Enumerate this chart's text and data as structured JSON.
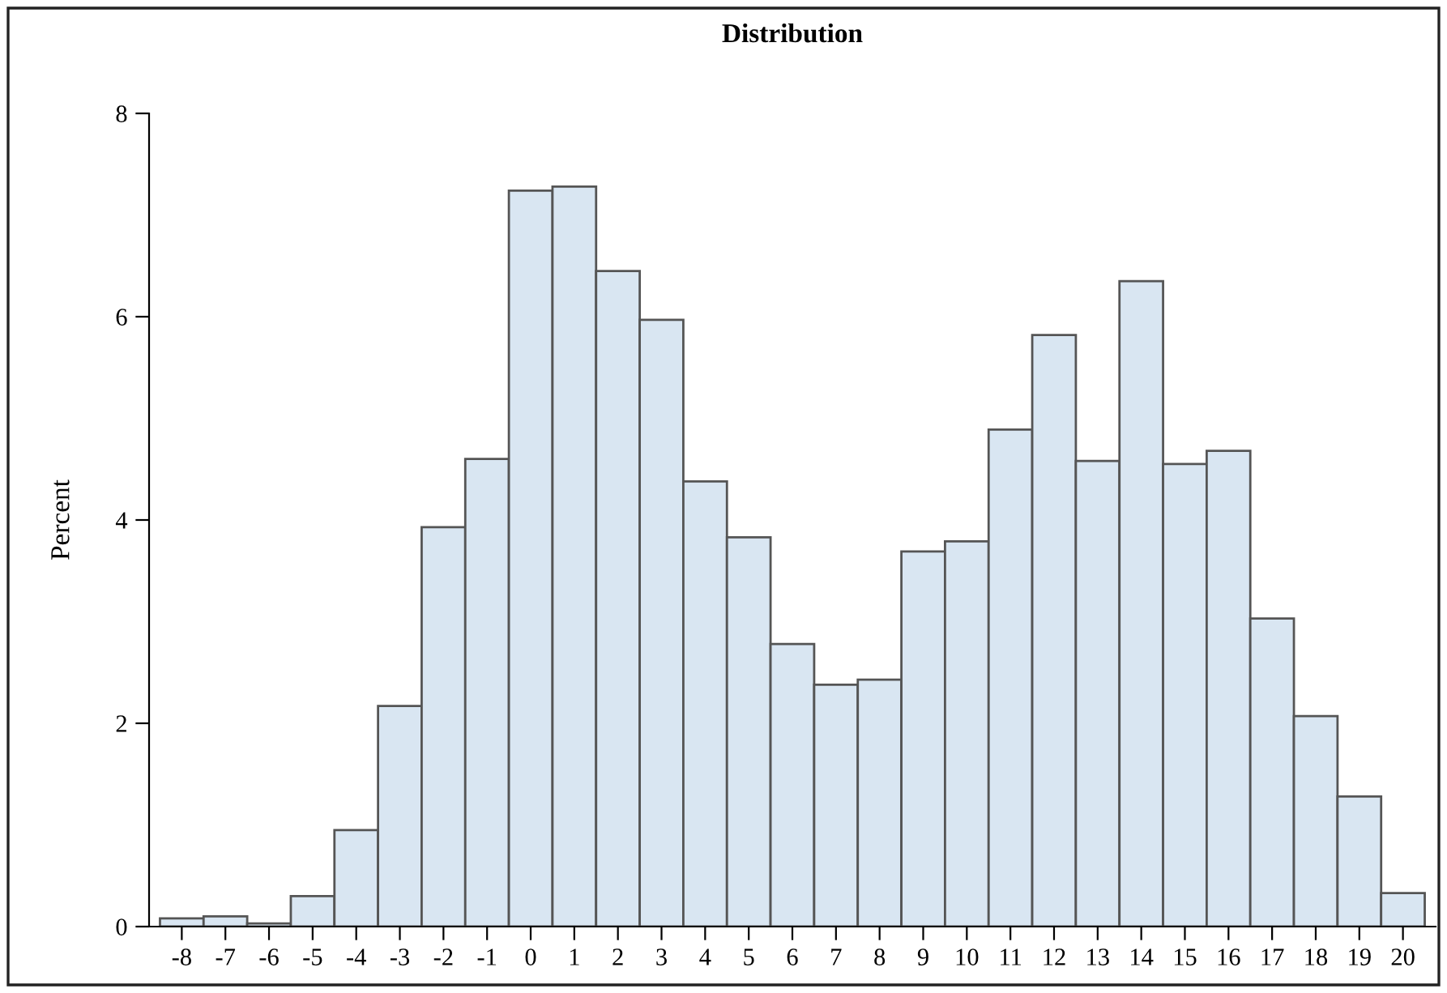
{
  "chart_data": {
    "type": "histogram",
    "title": "Distribution",
    "ylabel": "Percent",
    "bins": [
      -8.5,
      -7.5,
      -6.5,
      -5.5,
      -4.5,
      -3.5,
      -2.5,
      -1.5,
      -0.5,
      0.5,
      1.5,
      2.5,
      3.5,
      4.5,
      5.5,
      6.5,
      7.5,
      8.5,
      9.5,
      10.5,
      11.5,
      12.5,
      13.5,
      14.5,
      15.5,
      16.5,
      17.5,
      18.5,
      19.5,
      20.5
    ],
    "values": [
      0.08,
      0.1,
      0.03,
      0.3,
      0.95,
      2.17,
      3.93,
      4.6,
      7.24,
      7.28,
      6.45,
      5.97,
      4.38,
      3.83,
      2.78,
      2.38,
      2.43,
      3.69,
      3.79,
      4.89,
      5.82,
      4.58,
      6.35,
      4.55,
      4.68,
      3.03,
      2.07,
      1.28,
      0.33
    ],
    "color": "#d9e6f2",
    "xlim": [
      -8.75,
      20.75
    ],
    "xticks": [
      -8,
      -7,
      -6,
      -5,
      -4,
      -3,
      -2,
      -1,
      0,
      1,
      2,
      3,
      4,
      5,
      6,
      7,
      8,
      9,
      10,
      11,
      12,
      13,
      14,
      15,
      16,
      17,
      18,
      19,
      20
    ],
    "ylim": [
      0,
      8
    ],
    "yticks": [
      0,
      2,
      4,
      6,
      8
    ],
    "grid": false
  }
}
